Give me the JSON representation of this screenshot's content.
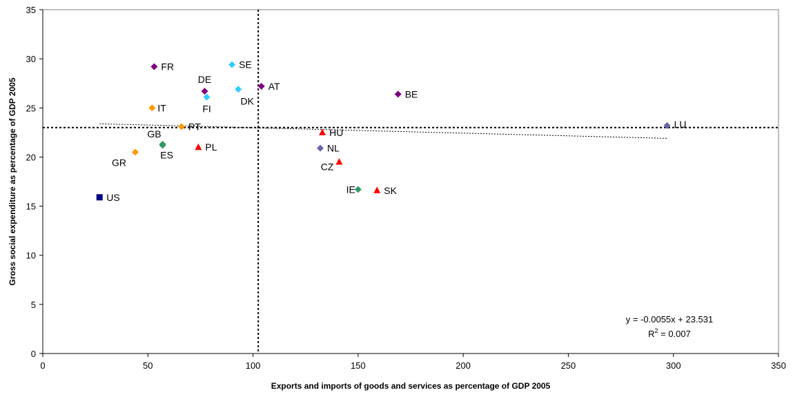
{
  "chart_data": {
    "type": "scatter",
    "xlabel": "Exports and imports of goods and services as percentage of GDP 2005",
    "ylabel": "Gross social expenditure as percentage of GDP 2005",
    "xlim": [
      0,
      350
    ],
    "ylim": [
      0,
      35
    ],
    "xticks": [
      0,
      50,
      100,
      150,
      200,
      250,
      300,
      350
    ],
    "yticks": [
      0,
      5,
      10,
      15,
      20,
      25,
      30,
      35
    ],
    "grid": false,
    "colors": {
      "purple": "#7f007f",
      "cyan": "#33ccff",
      "orange": "#ff9900",
      "green": "#339966",
      "red": "#ff0000",
      "slate": "#6666aa",
      "navy": "#000080"
    },
    "points": [
      {
        "label": "US",
        "x": 27,
        "y": 15.9,
        "marker": "square",
        "color": "#000080"
      },
      {
        "label": "GR",
        "x": 44,
        "y": 20.5,
        "marker": "diamond",
        "color": "#ff9900"
      },
      {
        "label": "IT",
        "x": 52,
        "y": 25.0,
        "marker": "diamond",
        "color": "#ff9900"
      },
      {
        "label": "FR",
        "x": 53,
        "y": 29.2,
        "marker": "diamond",
        "color": "#7f007f"
      },
      {
        "label": "GB",
        "x": 57,
        "y": 21.3,
        "marker": "diamond",
        "color": "#339966"
      },
      {
        "label": "ES",
        "x": 57,
        "y": 21.2,
        "marker": "diamond",
        "color": "#339966"
      },
      {
        "label": "PT",
        "x": 66,
        "y": 23.1,
        "marker": "diamond",
        "color": "#ff9900"
      },
      {
        "label": "PL",
        "x": 74,
        "y": 21.0,
        "marker": "triangle",
        "color": "#ff0000"
      },
      {
        "label": "DE",
        "x": 77,
        "y": 26.7,
        "marker": "diamond",
        "color": "#7f007f"
      },
      {
        "label": "FI",
        "x": 78,
        "y": 26.1,
        "marker": "diamond",
        "color": "#33ccff"
      },
      {
        "label": "SE",
        "x": 90,
        "y": 29.4,
        "marker": "diamond",
        "color": "#33ccff"
      },
      {
        "label": "DK",
        "x": 93,
        "y": 26.9,
        "marker": "diamond",
        "color": "#33ccff"
      },
      {
        "label": "AT",
        "x": 104,
        "y": 27.2,
        "marker": "diamond",
        "color": "#7f007f"
      },
      {
        "label": "NL",
        "x": 132,
        "y": 20.9,
        "marker": "diamond",
        "color": "#6666aa"
      },
      {
        "label": "HU",
        "x": 133,
        "y": 22.5,
        "marker": "triangle",
        "color": "#ff0000"
      },
      {
        "label": "CZ",
        "x": 141,
        "y": 19.5,
        "marker": "triangle",
        "color": "#ff0000"
      },
      {
        "label": "IE",
        "x": 150,
        "y": 16.7,
        "marker": "diamond",
        "color": "#339966"
      },
      {
        "label": "SK",
        "x": 159,
        "y": 16.6,
        "marker": "triangle",
        "color": "#ff0000"
      },
      {
        "label": "BE",
        "x": 169,
        "y": 26.4,
        "marker": "diamond",
        "color": "#7f007f"
      },
      {
        "label": "LU",
        "x": 297,
        "y": 23.2,
        "marker": "diamond",
        "color": "#6666aa"
      }
    ],
    "reference_lines": {
      "x_mean": 102.5,
      "y_mean": 23.0
    },
    "trendline": {
      "slope": -0.0055,
      "intercept": 23.531,
      "x_start": 27,
      "x_end": 297
    },
    "equation_text": "y = -0.0055x + 23.531",
    "r2_prefix": "R",
    "r2_sup": "2",
    "r2_value": " = 0.007"
  }
}
